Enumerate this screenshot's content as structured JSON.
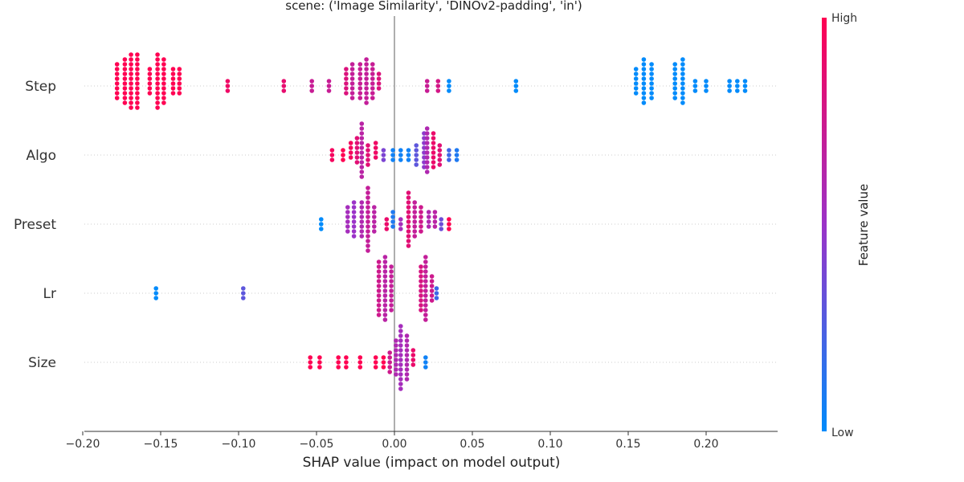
{
  "chart_data": {
    "type": "scatter",
    "subtype": "shap-beeswarm",
    "title": "scene: ('Image Similarity', 'DINOv2-padding', 'in')",
    "xlabel": "SHAP value (impact on model output)",
    "xlim": [
      -0.2,
      0.245
    ],
    "xticks": [
      "−0.20",
      "−0.15",
      "−0.10",
      "−0.05",
      "0.00",
      "0.05",
      "0.10",
      "0.15",
      "0.20"
    ],
    "xtick_values": [
      -0.2,
      -0.15,
      -0.1,
      -0.05,
      0.0,
      0.05,
      0.1,
      0.15,
      0.2
    ],
    "colorbar": {
      "title": "Feature value",
      "high_label": "High",
      "low_label": "Low",
      "low_color": "#008bfb",
      "high_color": "#ff0052"
    },
    "grid": false,
    "features": [
      {
        "name": "Step",
        "groups": [
          {
            "x": -0.178,
            "n": 8,
            "v": 1.0
          },
          {
            "x": -0.173,
            "n": 10,
            "v": 1.0
          },
          {
            "x": -0.169,
            "n": 12,
            "v": 1.0
          },
          {
            "x": -0.165,
            "n": 12,
            "v": 1.0
          },
          {
            "x": -0.157,
            "n": 6,
            "v": 1.0
          },
          {
            "x": -0.152,
            "n": 12,
            "v": 1.0
          },
          {
            "x": -0.148,
            "n": 10,
            "v": 1.0
          },
          {
            "x": -0.142,
            "n": 6,
            "v": 1.0
          },
          {
            "x": -0.138,
            "n": 6,
            "v": 1.0
          },
          {
            "x": -0.107,
            "n": 3,
            "v": 0.92
          },
          {
            "x": -0.071,
            "n": 3,
            "v": 0.88
          },
          {
            "x": -0.053,
            "n": 3,
            "v": 0.72
          },
          {
            "x": -0.042,
            "n": 3,
            "v": 0.72
          },
          {
            "x": -0.031,
            "n": 6,
            "v": 0.82
          },
          {
            "x": -0.027,
            "n": 8,
            "v": 0.7
          },
          {
            "x": -0.022,
            "n": 8,
            "v": 0.72
          },
          {
            "x": -0.018,
            "n": 10,
            "v": 0.7
          },
          {
            "x": -0.014,
            "n": 8,
            "v": 0.72
          },
          {
            "x": -0.01,
            "n": 4,
            "v": 0.82
          },
          {
            "x": 0.021,
            "n": 3,
            "v": 0.72
          },
          {
            "x": 0.028,
            "n": 3,
            "v": 0.78
          },
          {
            "x": 0.035,
            "n": 3,
            "v": 0.0
          },
          {
            "x": 0.078,
            "n": 3,
            "v": 0.0
          },
          {
            "x": 0.155,
            "n": 6,
            "v": 0.0
          },
          {
            "x": 0.16,
            "n": 10,
            "v": 0.0
          },
          {
            "x": 0.165,
            "n": 8,
            "v": 0.0
          },
          {
            "x": 0.18,
            "n": 8,
            "v": 0.0
          },
          {
            "x": 0.185,
            "n": 10,
            "v": 0.0
          },
          {
            "x": 0.193,
            "n": 3,
            "v": 0.0
          },
          {
            "x": 0.2,
            "n": 3,
            "v": 0.0
          },
          {
            "x": 0.215,
            "n": 3,
            "v": 0.0
          },
          {
            "x": 0.22,
            "n": 3,
            "v": 0.0
          },
          {
            "x": 0.225,
            "n": 3,
            "v": 0.0
          }
        ]
      },
      {
        "name": "Algo",
        "groups": [
          {
            "x": -0.04,
            "n": 3,
            "v": 0.95
          },
          {
            "x": -0.033,
            "n": 3,
            "v": 1.0
          },
          {
            "x": -0.028,
            "n": 4,
            "v": 0.95
          },
          {
            "x": -0.024,
            "n": 6,
            "v": 0.85
          },
          {
            "x": -0.021,
            "n": 12,
            "v": 0.65
          },
          {
            "x": -0.017,
            "n": 5,
            "v": 0.85
          },
          {
            "x": -0.012,
            "n": 4,
            "v": 0.92
          },
          {
            "x": -0.007,
            "n": 3,
            "v": 0.4
          },
          {
            "x": -0.001,
            "n": 3,
            "v": 0.05
          },
          {
            "x": 0.004,
            "n": 3,
            "v": 0.05
          },
          {
            "x": 0.009,
            "n": 3,
            "v": 0.05
          },
          {
            "x": 0.014,
            "n": 5,
            "v": 0.3
          },
          {
            "x": 0.019,
            "n": 8,
            "v": 0.45
          },
          {
            "x": 0.021,
            "n": 10,
            "v": 0.6
          },
          {
            "x": 0.025,
            "n": 8,
            "v": 0.9
          },
          {
            "x": 0.029,
            "n": 5,
            "v": 0.85
          },
          {
            "x": 0.035,
            "n": 3,
            "v": 0.2
          },
          {
            "x": 0.04,
            "n": 3,
            "v": 0.1
          }
        ]
      },
      {
        "name": "Preset",
        "groups": [
          {
            "x": -0.047,
            "n": 3,
            "v": 0.0
          },
          {
            "x": -0.03,
            "n": 6,
            "v": 0.55
          },
          {
            "x": -0.026,
            "n": 8,
            "v": 0.5
          },
          {
            "x": -0.021,
            "n": 8,
            "v": 0.6
          },
          {
            "x": -0.017,
            "n": 14,
            "v": 0.7
          },
          {
            "x": -0.013,
            "n": 6,
            "v": 0.65
          },
          {
            "x": -0.005,
            "n": 3,
            "v": 0.9
          },
          {
            "x": -0.001,
            "n": 4,
            "v": 0.1
          },
          {
            "x": 0.004,
            "n": 3,
            "v": 0.55
          },
          {
            "x": 0.009,
            "n": 12,
            "v": 0.85
          },
          {
            "x": 0.013,
            "n": 8,
            "v": 0.7
          },
          {
            "x": 0.017,
            "n": 6,
            "v": 0.75
          },
          {
            "x": 0.022,
            "n": 4,
            "v": 0.6
          },
          {
            "x": 0.026,
            "n": 4,
            "v": 0.65
          },
          {
            "x": 0.03,
            "n": 3,
            "v": 0.35
          },
          {
            "x": 0.035,
            "n": 3,
            "v": 1.0
          }
        ]
      },
      {
        "name": "Lr",
        "groups": [
          {
            "x": -0.153,
            "n": 3,
            "v": 0.0
          },
          {
            "x": -0.097,
            "n": 3,
            "v": 0.3
          },
          {
            "x": -0.01,
            "n": 12,
            "v": 0.75
          },
          {
            "x": -0.006,
            "n": 14,
            "v": 0.65
          },
          {
            "x": -0.002,
            "n": 10,
            "v": 0.7
          },
          {
            "x": 0.017,
            "n": 10,
            "v": 0.8
          },
          {
            "x": 0.02,
            "n": 14,
            "v": 0.7
          },
          {
            "x": 0.024,
            "n": 6,
            "v": 0.75
          },
          {
            "x": 0.027,
            "n": 3,
            "v": 0.2
          }
        ]
      },
      {
        "name": "Size",
        "groups": [
          {
            "x": -0.054,
            "n": 3,
            "v": 1.0
          },
          {
            "x": -0.048,
            "n": 3,
            "v": 1.0
          },
          {
            "x": -0.036,
            "n": 3,
            "v": 1.0
          },
          {
            "x": -0.031,
            "n": 3,
            "v": 1.0
          },
          {
            "x": -0.022,
            "n": 3,
            "v": 1.0
          },
          {
            "x": -0.012,
            "n": 3,
            "v": 1.0
          },
          {
            "x": -0.007,
            "n": 3,
            "v": 1.0
          },
          {
            "x": -0.003,
            "n": 5,
            "v": 0.75
          },
          {
            "x": 0.001,
            "n": 8,
            "v": 0.6
          },
          {
            "x": 0.004,
            "n": 14,
            "v": 0.55
          },
          {
            "x": 0.008,
            "n": 10,
            "v": 0.6
          },
          {
            "x": 0.012,
            "n": 4,
            "v": 0.9
          },
          {
            "x": 0.02,
            "n": 3,
            "v": 0.05
          }
        ]
      }
    ]
  }
}
